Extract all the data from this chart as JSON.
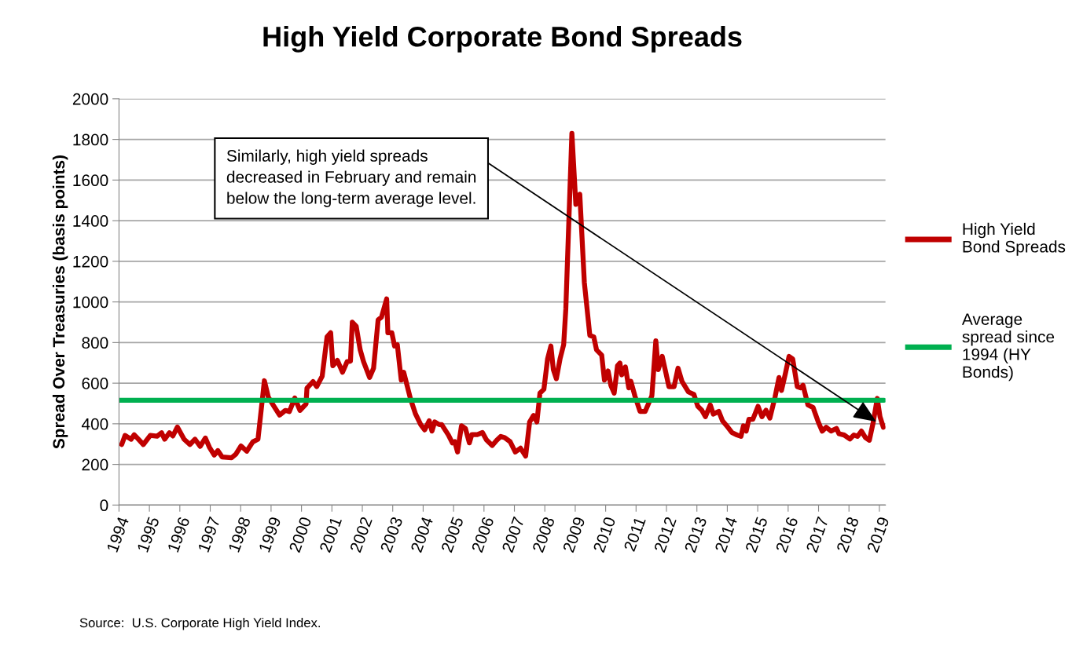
{
  "chart_data": {
    "type": "line",
    "title": "High Yield Corporate Bond Spreads",
    "ylabel": "Spread Over Treasuries (basis points)",
    "xlim": [
      1994,
      2019.2
    ],
    "xticks": [
      1994,
      1995,
      1996,
      1997,
      1998,
      1999,
      2000,
      2001,
      2002,
      2003,
      2004,
      2005,
      2006,
      2007,
      2008,
      2009,
      2010,
      2011,
      2012,
      2013,
      2014,
      2015,
      2016,
      2017,
      2018,
      2019
    ],
    "ylim": [
      0,
      2000
    ],
    "yticks": [
      0,
      200,
      400,
      600,
      800,
      1000,
      1200,
      1400,
      1600,
      1800,
      2000
    ],
    "grid": "y",
    "legend": "right",
    "marker": "none",
    "line_style": "solid",
    "series": [
      {
        "name": "High Yield Bond Spreads",
        "color": "#c00000",
        "x": [
          1994.09,
          1994.2,
          1994.4,
          1994.5,
          1994.6,
          1994.8,
          1995.03,
          1995.25,
          1995.4,
          1995.5,
          1995.66,
          1995.77,
          1995.92,
          1996.14,
          1996.33,
          1996.5,
          1996.67,
          1996.84,
          1996.97,
          1997.13,
          1997.25,
          1997.39,
          1997.7,
          1997.84,
          1998.01,
          1998.2,
          1998.4,
          1998.57,
          1998.78,
          1998.91,
          1999.1,
          1999.28,
          1999.47,
          1999.6,
          1999.78,
          1999.95,
          2000.15,
          2000.18,
          2000.38,
          2000.5,
          2000.68,
          2000.84,
          2000.96,
          2001.03,
          2001.18,
          2001.35,
          2001.5,
          2001.61,
          2001.67,
          2001.8,
          2001.93,
          2002.04,
          2002.24,
          2002.37,
          2002.52,
          2002.63,
          2002.8,
          2002.84,
          2002.97,
          2003.06,
          2003.15,
          2003.28,
          2003.36,
          2003.58,
          2003.75,
          2003.92,
          2004.05,
          2004.2,
          2004.29,
          2004.38,
          2004.53,
          2004.61,
          2004.83,
          2004.96,
          2005.04,
          2005.13,
          2005.26,
          2005.39,
          2005.52,
          2005.6,
          2005.78,
          2005.95,
          2006.08,
          2006.27,
          2006.42,
          2006.55,
          2006.68,
          2006.86,
          2007.03,
          2007.2,
          2007.37,
          2007.5,
          2007.63,
          2007.74,
          2007.84,
          2007.97,
          2008.09,
          2008.2,
          2008.28,
          2008.38,
          2008.5,
          2008.62,
          2008.69,
          2008.89,
          2009.02,
          2009.15,
          2009.3,
          2009.48,
          2009.61,
          2009.7,
          2009.87,
          2009.96,
          2010.08,
          2010.17,
          2010.28,
          2010.39,
          2010.47,
          2010.53,
          2010.65,
          2010.76,
          2010.83,
          2010.96,
          2011.13,
          2011.3,
          2011.52,
          2011.65,
          2011.73,
          2011.86,
          2012.08,
          2012.25,
          2012.38,
          2012.51,
          2012.72,
          2012.9,
          2013.03,
          2013.16,
          2013.28,
          2013.44,
          2013.54,
          2013.72,
          2013.84,
          2014.02,
          2014.15,
          2014.32,
          2014.45,
          2014.53,
          2014.62,
          2014.71,
          2014.84,
          2015.01,
          2015.14,
          2015.27,
          2015.4,
          2015.57,
          2015.7,
          2015.78,
          2015.91,
          2016.03,
          2016.15,
          2016.3,
          2016.41,
          2016.49,
          2016.65,
          2016.82,
          2016.99,
          2017.12,
          2017.25,
          2017.41,
          2017.59,
          2017.67,
          2017.84,
          2018.03,
          2018.16,
          2018.28,
          2018.41,
          2018.54,
          2018.67,
          2018.8,
          2018.93,
          2019.02,
          2019.13
        ],
        "values": [
          298,
          343,
          324,
          346,
          330,
          298,
          343,
          339,
          356,
          324,
          356,
          340,
          384,
          324,
          298,
          324,
          289,
          330,
          285,
          246,
          268,
          237,
          233,
          250,
          291,
          265,
          311,
          324,
          612,
          531,
          485,
          443,
          466,
          460,
          527,
          466,
          498,
          576,
          608,
          583,
          634,
          828,
          848,
          686,
          712,
          654,
          706,
          708,
          900,
          880,
          764,
          706,
          628,
          674,
          912,
          925,
          1015,
          848,
          848,
          783,
          790,
          615,
          654,
          525,
          448,
          396,
          370,
          415,
          364,
          409,
          396,
          396,
          345,
          306,
          312,
          261,
          390,
          377,
          306,
          347,
          347,
          357,
          321,
          293,
          319,
          338,
          332,
          312,
          261,
          280,
          241,
          409,
          441,
          409,
          551,
          570,
          719,
          783,
          667,
          622,
          719,
          790,
          964,
          1830,
          1480,
          1530,
          1095,
          835,
          828,
          764,
          738,
          615,
          660,
          590,
          551,
          686,
          699,
          641,
          680,
          577,
          609,
          538,
          461,
          461,
          538,
          809,
          667,
          732,
          583,
          583,
          674,
          609,
          557,
          545,
          486,
          467,
          435,
          493,
          448,
          461,
          415,
          383,
          357,
          345,
          338,
          390,
          364,
          422,
          422,
          486,
          435,
          467,
          428,
          532,
          628,
          564,
          648,
          732,
          719,
          583,
          577,
          590,
          493,
          480,
          409,
          364,
          383,
          364,
          377,
          351,
          345,
          325,
          345,
          338,
          364,
          332,
          319,
          409,
          525,
          435,
          383
        ]
      },
      {
        "name": "Average spread since 1994 (HY Bonds)",
        "color": "#00b050",
        "x": [
          1994.0,
          2019.15
        ],
        "values": [
          516,
          516
        ]
      }
    ],
    "annotations": [
      "Source:  U.S. Corporate High Yield Index.",
      {
        "text": "Similarly, high yield spreads decreased in February and remain below the long-term average level.",
        "x": 2018.9,
        "y": 410
      }
    ]
  }
}
